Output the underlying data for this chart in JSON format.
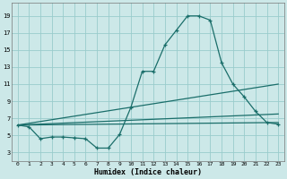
{
  "xlabel": "Humidex (Indice chaleur)",
  "bg_color": "#cce8e8",
  "grid_color": "#99cccc",
  "line_color": "#1a6e6a",
  "xlim": [
    -0.5,
    23.5
  ],
  "ylim": [
    2.0,
    20.5
  ],
  "xticks": [
    0,
    1,
    2,
    3,
    4,
    5,
    6,
    7,
    8,
    9,
    10,
    11,
    12,
    13,
    14,
    15,
    16,
    17,
    18,
    19,
    20,
    21,
    22,
    23
  ],
  "yticks": [
    3,
    5,
    7,
    9,
    11,
    13,
    15,
    17,
    19
  ],
  "main_line": {
    "x": [
      0,
      1,
      2,
      3,
      4,
      5,
      6,
      7,
      8,
      9,
      10,
      11,
      12,
      13,
      14,
      15,
      16,
      17,
      18,
      19,
      20,
      21,
      22,
      23
    ],
    "y": [
      6.2,
      6.0,
      4.6,
      4.8,
      4.8,
      4.7,
      4.6,
      3.5,
      3.5,
      5.1,
      8.3,
      12.5,
      12.5,
      15.6,
      17.3,
      19.0,
      19.0,
      18.5,
      13.5,
      11.0,
      9.5,
      7.8,
      6.5,
      6.3
    ]
  },
  "straight_lines": [
    {
      "x": [
        0,
        23
      ],
      "y": [
        6.2,
        6.5
      ]
    },
    {
      "x": [
        0,
        23
      ],
      "y": [
        6.2,
        7.5
      ]
    },
    {
      "x": [
        0,
        23
      ],
      "y": [
        6.2,
        11.0
      ]
    }
  ]
}
